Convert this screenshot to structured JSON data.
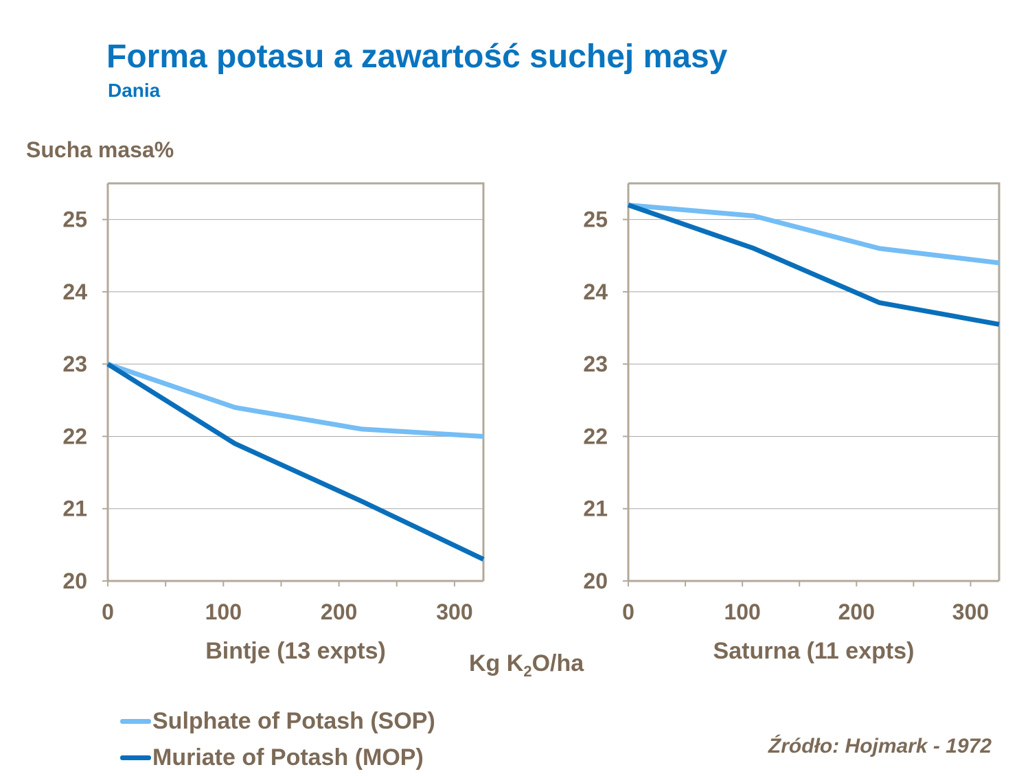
{
  "title": "Forma potasu a zawartość suchej masy",
  "subtitle": "Dania",
  "y_axis_label": "Sucha masa%",
  "x_axis_unit": {
    "prefix": "Kg K",
    "subscript": "2",
    "suffix": "O/ha"
  },
  "source": "Źródło: Hojmark - 1972",
  "colors": {
    "sop": "#74bdf5",
    "mop": "#0a6fba",
    "frame": "#b3a999",
    "grid": "#a8a8a8",
    "text": "#7c6a57",
    "title": "#0a74bf"
  },
  "legend": [
    {
      "label": "Sulphate of Potash (SOP)",
      "color": "#74bdf5"
    },
    {
      "label": "Muriate of Potash (MOP)",
      "color": "#0a6fba"
    }
  ],
  "chart_data": [
    {
      "type": "line",
      "title": "Bintje (13 expts)",
      "xlim": [
        0,
        325
      ],
      "ylim": [
        20,
        25.5
      ],
      "xticks": [
        0,
        100,
        200,
        300
      ],
      "yticks": [
        20,
        21,
        22,
        23,
        24,
        25
      ],
      "grid": true,
      "series": [
        {
          "name": "Sulphate of Potash (SOP)",
          "x": [
            0,
            110,
            220,
            325
          ],
          "y": [
            23.0,
            22.4,
            22.1,
            22.0
          ]
        },
        {
          "name": "Muriate of Potash (MOP)",
          "x": [
            0,
            110,
            220,
            325
          ],
          "y": [
            23.0,
            21.9,
            21.1,
            20.3
          ]
        }
      ]
    },
    {
      "type": "line",
      "title": "Saturna (11 expts)",
      "xlim": [
        0,
        325
      ],
      "ylim": [
        20,
        25.5
      ],
      "xticks": [
        0,
        100,
        200,
        300
      ],
      "yticks": [
        20,
        21,
        22,
        23,
        24,
        25
      ],
      "grid": true,
      "series": [
        {
          "name": "Sulphate of Potash (SOP)",
          "x": [
            0,
            110,
            220,
            325
          ],
          "y": [
            25.2,
            25.05,
            24.6,
            24.4
          ]
        },
        {
          "name": "Muriate of Potash (MOP)",
          "x": [
            0,
            110,
            220,
            325
          ],
          "y": [
            25.2,
            24.6,
            23.85,
            23.55
          ]
        }
      ]
    }
  ]
}
